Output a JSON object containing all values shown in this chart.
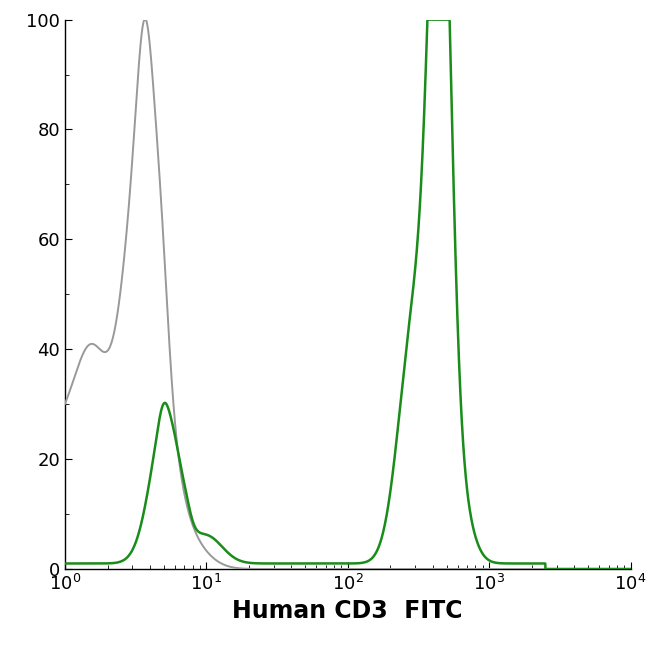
{
  "title": "",
  "xlabel": "Human CD3  FITC",
  "ylabel": "",
  "xlim_log": [
    1,
    10000
  ],
  "ylim": [
    0,
    100
  ],
  "yticks": [
    0,
    20,
    40,
    60,
    80,
    100
  ],
  "background_color": "#ffffff",
  "line_color_gray": "#999999",
  "line_color_green": "#1a8c1a",
  "linewidth_gray": 1.4,
  "linewidth_green": 1.8,
  "figsize": [
    6.5,
    6.54
  ],
  "dpi": 100
}
